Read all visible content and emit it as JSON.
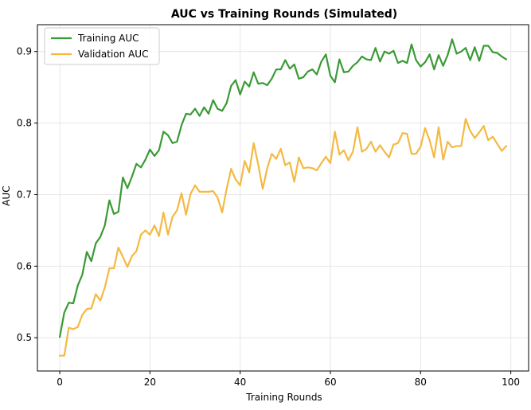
{
  "chart_data": {
    "type": "line",
    "title": "AUC vs Training Rounds (Simulated)",
    "xlabel": "Training Rounds",
    "ylabel": "AUC",
    "xlim": [
      -4.95,
      103.95
    ],
    "ylim": [
      0.4535,
      0.9375
    ],
    "xticks": [
      0,
      20,
      40,
      60,
      80,
      100
    ],
    "yticks": [
      0.5,
      0.6,
      0.7,
      0.8,
      0.9
    ],
    "grid": true,
    "legend_position": "top-left",
    "x": [
      0,
      1,
      2,
      3,
      4,
      5,
      6,
      7,
      8,
      9,
      10,
      11,
      12,
      13,
      14,
      15,
      16,
      17,
      18,
      19,
      20,
      21,
      22,
      23,
      24,
      25,
      26,
      27,
      28,
      29,
      30,
      31,
      32,
      33,
      34,
      35,
      36,
      37,
      38,
      39,
      40,
      41,
      42,
      43,
      44,
      45,
      46,
      47,
      48,
      49,
      50,
      51,
      52,
      53,
      54,
      55,
      56,
      57,
      58,
      59,
      60,
      61,
      62,
      63,
      64,
      65,
      66,
      67,
      68,
      69,
      70,
      71,
      72,
      73,
      74,
      75,
      76,
      77,
      78,
      79,
      80,
      81,
      82,
      83,
      84,
      85,
      86,
      87,
      88,
      89,
      90,
      91,
      92,
      93,
      94,
      95,
      96,
      97,
      98,
      99
    ],
    "series": [
      {
        "name": "Training AUC",
        "color": "#3a9a35",
        "values": [
          0.501,
          0.535,
          0.549,
          0.548,
          0.573,
          0.588,
          0.62,
          0.607,
          0.632,
          0.641,
          0.657,
          0.692,
          0.673,
          0.676,
          0.724,
          0.709,
          0.725,
          0.743,
          0.738,
          0.749,
          0.763,
          0.754,
          0.762,
          0.788,
          0.783,
          0.772,
          0.774,
          0.797,
          0.813,
          0.812,
          0.82,
          0.81,
          0.822,
          0.813,
          0.832,
          0.82,
          0.817,
          0.828,
          0.852,
          0.86,
          0.84,
          0.858,
          0.851,
          0.871,
          0.855,
          0.856,
          0.853,
          0.862,
          0.875,
          0.875,
          0.888,
          0.876,
          0.882,
          0.862,
          0.864,
          0.872,
          0.875,
          0.868,
          0.886,
          0.896,
          0.866,
          0.857,
          0.889,
          0.871,
          0.872,
          0.88,
          0.885,
          0.893,
          0.889,
          0.888,
          0.905,
          0.886,
          0.9,
          0.897,
          0.901,
          0.884,
          0.887,
          0.884,
          0.91,
          0.888,
          0.879,
          0.885,
          0.896,
          0.875,
          0.895,
          0.88,
          0.895,
          0.917,
          0.897,
          0.9,
          0.905,
          0.888,
          0.906,
          0.887,
          0.908,
          0.908,
          0.899,
          0.898,
          0.893,
          0.889
        ]
      },
      {
        "name": "Validation AUC",
        "color": "#f5b942",
        "values": [
          0.475,
          0.475,
          0.514,
          0.512,
          0.515,
          0.532,
          0.54,
          0.541,
          0.561,
          0.552,
          0.57,
          0.597,
          0.597,
          0.626,
          0.613,
          0.599,
          0.614,
          0.621,
          0.644,
          0.65,
          0.644,
          0.657,
          0.642,
          0.675,
          0.644,
          0.669,
          0.678,
          0.702,
          0.672,
          0.701,
          0.713,
          0.704,
          0.704,
          0.704,
          0.705,
          0.696,
          0.675,
          0.708,
          0.736,
          0.721,
          0.713,
          0.747,
          0.731,
          0.772,
          0.742,
          0.708,
          0.737,
          0.757,
          0.75,
          0.764,
          0.741,
          0.745,
          0.718,
          0.752,
          0.737,
          0.738,
          0.737,
          0.734,
          0.744,
          0.753,
          0.744,
          0.788,
          0.756,
          0.762,
          0.748,
          0.76,
          0.794,
          0.76,
          0.764,
          0.774,
          0.76,
          0.769,
          0.76,
          0.752,
          0.77,
          0.772,
          0.786,
          0.785,
          0.757,
          0.757,
          0.767,
          0.793,
          0.776,
          0.752,
          0.794,
          0.749,
          0.774,
          0.766,
          0.768,
          0.768,
          0.806,
          0.789,
          0.779,
          0.787,
          0.796,
          0.776,
          0.781,
          0.771,
          0.761,
          0.768
        ]
      }
    ]
  }
}
